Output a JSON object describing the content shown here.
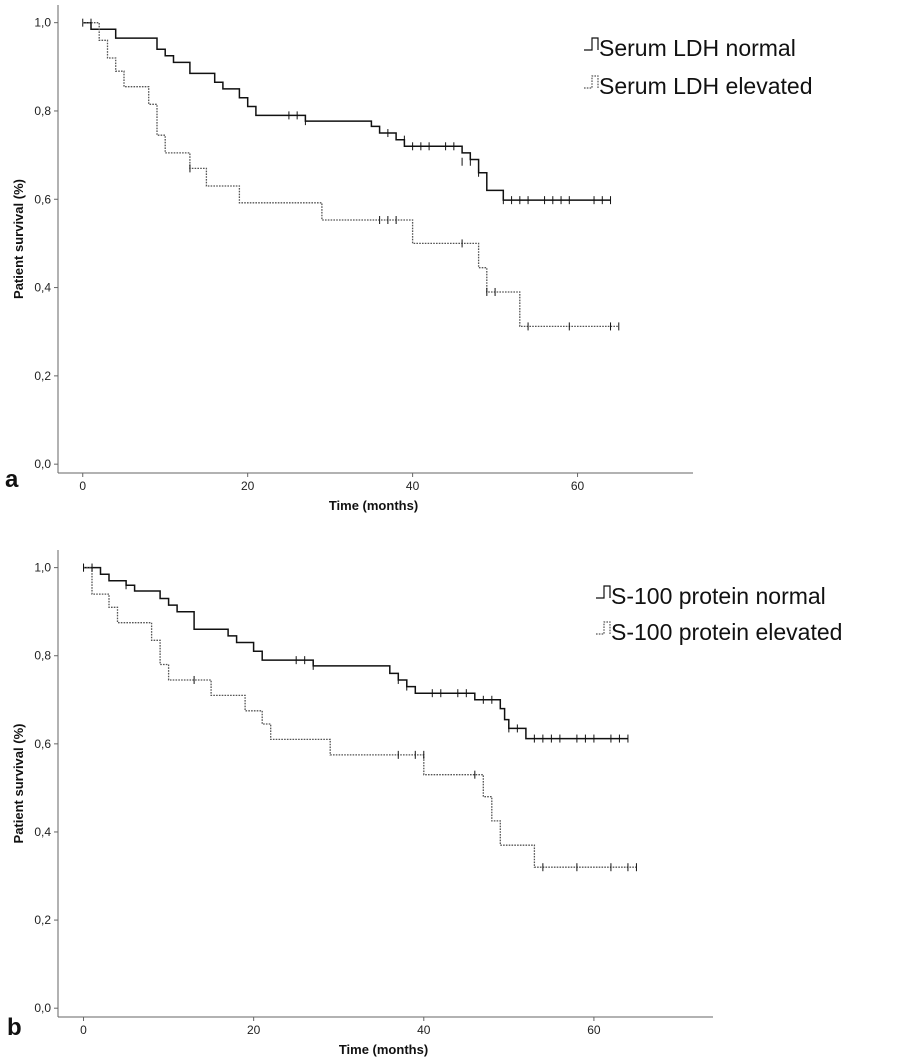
{
  "chart_data": [
    {
      "type": "line",
      "subtype": "kaplan-meier",
      "panel_label": "a",
      "title": "",
      "xlabel": "Time (months)",
      "ylabel": "Patient survival (%)",
      "xlim": [
        -3,
        74
      ],
      "ylim": [
        -0.02,
        1.04
      ],
      "x_ticks": [
        0,
        20,
        40,
        60
      ],
      "x_tick_labels": [
        "0",
        "20",
        "40",
        "60"
      ],
      "y_ticks": [
        0.0,
        0.2,
        0.4,
        0.6,
        0.8,
        1.0
      ],
      "y_tick_labels": [
        "0,0",
        "0,2",
        "0,4",
        "0,6",
        "0,8",
        "1,0"
      ],
      "grid": false,
      "legend_position": "top-right",
      "series": [
        {
          "name": "Serum LDH normal",
          "color": "#111111",
          "dashed": false,
          "steps": [
            [
              0,
              1.0
            ],
            [
              1,
              0.985
            ],
            [
              4,
              0.965
            ],
            [
              9,
              0.94
            ],
            [
              10,
              0.925
            ],
            [
              11,
              0.91
            ],
            [
              13,
              0.885
            ],
            [
              16,
              0.865
            ],
            [
              17,
              0.85
            ],
            [
              19,
              0.83
            ],
            [
              20,
              0.81
            ],
            [
              21,
              0.79
            ],
            [
              27,
              0.777
            ],
            [
              35,
              0.765
            ],
            [
              36,
              0.75
            ],
            [
              38,
              0.735
            ],
            [
              39,
              0.72
            ],
            [
              46,
              0.705
            ],
            [
              47,
              0.69
            ],
            [
              48,
              0.66
            ],
            [
              49,
              0.62
            ],
            [
              51,
              0.598
            ],
            [
              64,
              0.598
            ]
          ],
          "censors": [
            [
              0,
              1.0
            ],
            [
              25,
              0.79
            ],
            [
              26,
              0.79
            ],
            [
              27,
              0.777
            ],
            [
              37,
              0.75
            ],
            [
              39,
              0.735
            ],
            [
              40,
              0.72
            ],
            [
              41,
              0.72
            ],
            [
              42,
              0.72
            ],
            [
              44,
              0.72
            ],
            [
              45,
              0.72
            ],
            [
              46,
              0.685
            ],
            [
              47,
              0.685
            ],
            [
              48,
              0.66
            ],
            [
              51,
              0.598
            ],
            [
              52,
              0.598
            ],
            [
              53,
              0.598
            ],
            [
              54,
              0.598
            ],
            [
              56,
              0.598
            ],
            [
              57,
              0.598
            ],
            [
              58,
              0.598
            ],
            [
              59,
              0.598
            ],
            [
              62,
              0.598
            ],
            [
              63,
              0.598
            ],
            [
              64,
              0.598
            ]
          ]
        },
        {
          "name": "Serum LDH elevated",
          "color": "#555555",
          "dashed": true,
          "steps": [
            [
              0,
              1.0
            ],
            [
              2,
              0.96
            ],
            [
              3,
              0.92
            ],
            [
              4,
              0.89
            ],
            [
              5,
              0.855
            ],
            [
              8,
              0.815
            ],
            [
              9,
              0.745
            ],
            [
              10,
              0.705
            ],
            [
              13,
              0.67
            ],
            [
              15,
              0.63
            ],
            [
              19,
              0.592
            ],
            [
              29,
              0.553
            ],
            [
              40,
              0.5
            ],
            [
              48,
              0.445
            ],
            [
              49,
              0.39
            ],
            [
              53,
              0.312
            ],
            [
              65,
              0.312
            ]
          ],
          "censors": [
            [
              1,
              1.0
            ],
            [
              13,
              0.67
            ],
            [
              36,
              0.553
            ],
            [
              37,
              0.553
            ],
            [
              38,
              0.553
            ],
            [
              46,
              0.5
            ],
            [
              49,
              0.39
            ],
            [
              50,
              0.39
            ],
            [
              54,
              0.312
            ],
            [
              59,
              0.312
            ],
            [
              64,
              0.312
            ],
            [
              65,
              0.312
            ]
          ]
        }
      ]
    },
    {
      "type": "line",
      "subtype": "kaplan-meier",
      "panel_label": "b",
      "title": "",
      "xlabel": "Time (months)",
      "ylabel": "Patient survival (%)",
      "xlim": [
        -3,
        74
      ],
      "ylim": [
        -0.02,
        1.04
      ],
      "x_ticks": [
        0,
        20,
        40,
        60
      ],
      "x_tick_labels": [
        "0",
        "20",
        "40",
        "60"
      ],
      "y_ticks": [
        0.0,
        0.2,
        0.4,
        0.6,
        0.8,
        1.0
      ],
      "y_tick_labels": [
        "0,0",
        "0,2",
        "0,4",
        "0,6",
        "0,8",
        "1,0"
      ],
      "grid": false,
      "legend_position": "top-right",
      "series": [
        {
          "name": "S-100 protein normal",
          "color": "#111111",
          "dashed": false,
          "steps": [
            [
              0,
              1.0
            ],
            [
              2,
              0.985
            ],
            [
              3,
              0.97
            ],
            [
              5,
              0.96
            ],
            [
              6,
              0.947
            ],
            [
              9,
              0.93
            ],
            [
              10,
              0.915
            ],
            [
              11,
              0.9
            ],
            [
              13,
              0.86
            ],
            [
              17,
              0.845
            ],
            [
              18,
              0.83
            ],
            [
              20,
              0.81
            ],
            [
              21,
              0.79
            ],
            [
              27,
              0.777
            ],
            [
              36,
              0.76
            ],
            [
              37,
              0.745
            ],
            [
              38,
              0.73
            ],
            [
              39,
              0.715
            ],
            [
              46,
              0.7
            ],
            [
              49,
              0.68
            ],
            [
              49.5,
              0.655
            ],
            [
              50,
              0.635
            ],
            [
              52,
              0.612
            ],
            [
              64,
              0.612
            ]
          ],
          "censors": [
            [
              0,
              1.0
            ],
            [
              1,
              1.0
            ],
            [
              5,
              0.96
            ],
            [
              25,
              0.79
            ],
            [
              26,
              0.79
            ],
            [
              27,
              0.777
            ],
            [
              37,
              0.745
            ],
            [
              38,
              0.73
            ],
            [
              41,
              0.715
            ],
            [
              42,
              0.715
            ],
            [
              44,
              0.715
            ],
            [
              45,
              0.715
            ],
            [
              47,
              0.7
            ],
            [
              48,
              0.7
            ],
            [
              50,
              0.635
            ],
            [
              51,
              0.635
            ],
            [
              53,
              0.612
            ],
            [
              54,
              0.612
            ],
            [
              55,
              0.612
            ],
            [
              56,
              0.612
            ],
            [
              58,
              0.612
            ],
            [
              59,
              0.612
            ],
            [
              60,
              0.612
            ],
            [
              62,
              0.612
            ],
            [
              63,
              0.612
            ],
            [
              64,
              0.612
            ]
          ]
        },
        {
          "name": "S-100 protein elevated",
          "color": "#555555",
          "dashed": true,
          "steps": [
            [
              0,
              1.0
            ],
            [
              1,
              0.94
            ],
            [
              3,
              0.91
            ],
            [
              4,
              0.875
            ],
            [
              8,
              0.835
            ],
            [
              9,
              0.78
            ],
            [
              10,
              0.745
            ],
            [
              15,
              0.71
            ],
            [
              19,
              0.675
            ],
            [
              21,
              0.645
            ],
            [
              22,
              0.61
            ],
            [
              29,
              0.575
            ],
            [
              40,
              0.53
            ],
            [
              47,
              0.48
            ],
            [
              48,
              0.425
            ],
            [
              49,
              0.37
            ],
            [
              53,
              0.32
            ],
            [
              65,
              0.32
            ]
          ],
          "censors": [
            [
              0,
              1.0
            ],
            [
              1,
              1.0
            ],
            [
              13,
              0.745
            ],
            [
              37,
              0.575
            ],
            [
              39,
              0.575
            ],
            [
              40,
              0.575
            ],
            [
              46,
              0.53
            ],
            [
              54,
              0.32
            ],
            [
              58,
              0.32
            ],
            [
              62,
              0.32
            ],
            [
              64,
              0.32
            ],
            [
              65,
              0.32
            ]
          ]
        }
      ]
    }
  ]
}
